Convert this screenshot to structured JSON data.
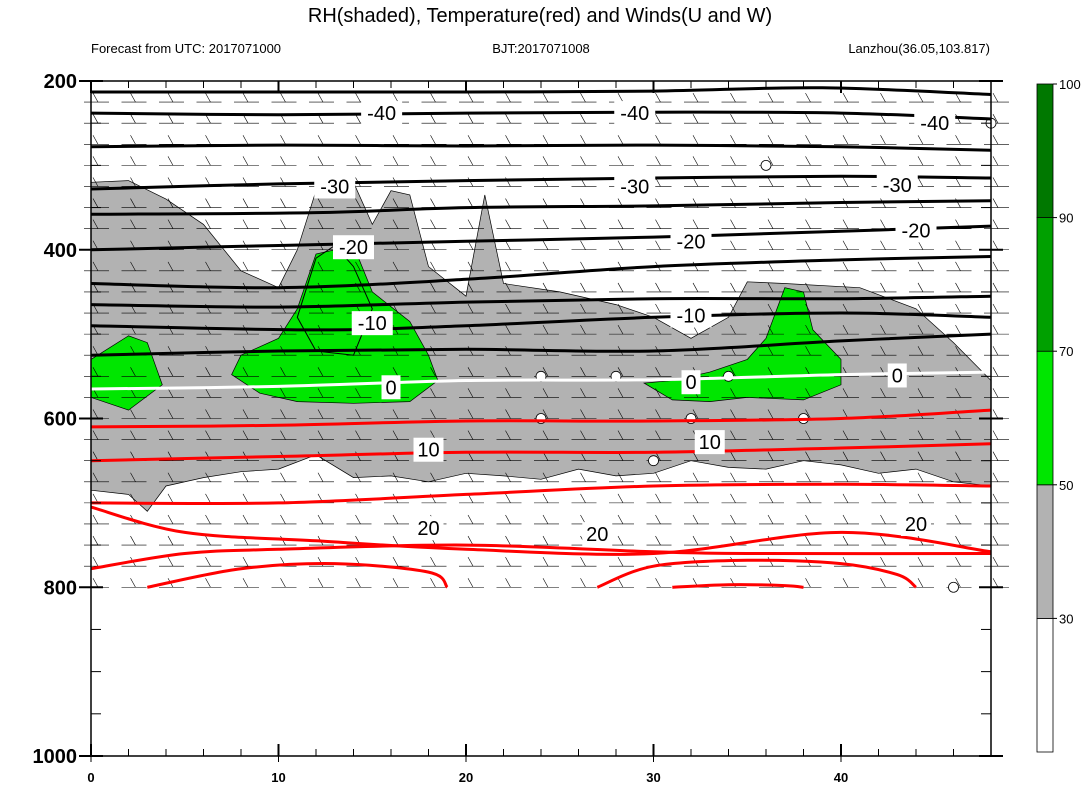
{
  "figure": {
    "title": "RH(shaded), Temperature(red) and Winds(U and W)",
    "left_subtitle": "Forecast from UTC: 2017071000",
    "center_subtitle": "BJT:2017071008",
    "right_subtitle": "Lanzhou(36.05,103.817)"
  },
  "chart_data": {
    "type": "contour",
    "x_axis": {
      "ticks": [
        0,
        10,
        20,
        30,
        40
      ],
      "range": [
        0,
        48
      ],
      "label": ""
    },
    "y_axis": {
      "ticks": [
        200,
        400,
        600,
        800,
        1000
      ],
      "range": [
        200,
        1000
      ],
      "label": "",
      "inverted": true
    },
    "grid": false,
    "colorbar": {
      "levels": [
        "30",
        "50",
        "70",
        "90",
        "100"
      ],
      "colors": [
        "#ffffff",
        "#b2b2b2",
        "#00e600",
        "#00a000",
        "#007800"
      ],
      "placement": "right"
    },
    "rh_shading": {
      "gray_region": [
        [
          0,
          320
        ],
        [
          2,
          318
        ],
        [
          4,
          340
        ],
        [
          6,
          370
        ],
        [
          8,
          425
        ],
        [
          10,
          445
        ],
        [
          11,
          400
        ],
        [
          12,
          330
        ],
        [
          14,
          320
        ],
        [
          15,
          370
        ],
        [
          16,
          330
        ],
        [
          17,
          335
        ],
        [
          18,
          420
        ],
        [
          20,
          455
        ],
        [
          21,
          335
        ],
        [
          22,
          440
        ],
        [
          25,
          450
        ],
        [
          28,
          465
        ],
        [
          30,
          480
        ],
        [
          32,
          505
        ],
        [
          34,
          480
        ],
        [
          35,
          438
        ],
        [
          37,
          440
        ],
        [
          41,
          445
        ],
        [
          44,
          470
        ],
        [
          46,
          510
        ],
        [
          48,
          555
        ],
        [
          48,
          680
        ],
        [
          46,
          675
        ],
        [
          44,
          660
        ],
        [
          42,
          665
        ],
        [
          40,
          655
        ],
        [
          38,
          650
        ],
        [
          36,
          660
        ],
        [
          34,
          658
        ],
        [
          32,
          650
        ],
        [
          30,
          665
        ],
        [
          28,
          668
        ],
        [
          26,
          660
        ],
        [
          24,
          672
        ],
        [
          22,
          668
        ],
        [
          20,
          665
        ],
        [
          18,
          675
        ],
        [
          16,
          668
        ],
        [
          14,
          670
        ],
        [
          12,
          643
        ],
        [
          10,
          660
        ],
        [
          8,
          663
        ],
        [
          6,
          670
        ],
        [
          4,
          680
        ],
        [
          3,
          710
        ],
        [
          2,
          690
        ],
        [
          0,
          685
        ]
      ],
      "green_regions": [
        [
          [
            0,
            530
          ],
          [
            2,
            502
          ],
          [
            3,
            510
          ],
          [
            3.8,
            560
          ],
          [
            2,
            590
          ],
          [
            0,
            575
          ]
        ],
        [
          [
            8,
            525
          ],
          [
            10,
            505
          ],
          [
            11,
            470
          ],
          [
            12,
            405
          ],
          [
            14,
            395
          ],
          [
            15,
            450
          ],
          [
            17,
            485
          ],
          [
            18,
            525
          ],
          [
            18.5,
            555
          ],
          [
            17,
            580
          ],
          [
            14,
            582
          ],
          [
            11,
            580
          ],
          [
            9,
            570
          ],
          [
            7.5,
            548
          ]
        ],
        [
          [
            29.5,
            558
          ],
          [
            31,
            555
          ],
          [
            33,
            545
          ],
          [
            35,
            530
          ],
          [
            36,
            505
          ],
          [
            37,
            445
          ],
          [
            38,
            450
          ],
          [
            38.5,
            495
          ],
          [
            40,
            530
          ],
          [
            40,
            560
          ],
          [
            38,
            578
          ],
          [
            35,
            575
          ],
          [
            33,
            580
          ],
          [
            31,
            578
          ]
        ]
      ],
      "dark_region": [
        [
          11,
          480
        ],
        [
          12,
          410
        ],
        [
          13,
          395
        ],
        [
          14,
          420
        ],
        [
          15,
          470
        ],
        [
          14,
          525
        ],
        [
          12,
          520
        ]
      ]
    },
    "temperature_contours": [
      {
        "value": -40,
        "color": "#000000",
        "points": [
          [
            0,
            213
          ],
          [
            10,
            213
          ],
          [
            20,
            213
          ],
          [
            30,
            212
          ],
          [
            39,
            208
          ],
          [
            48,
            216
          ]
        ]
      },
      {
        "value": -40,
        "color": "#000000",
        "points": [
          [
            0,
            238
          ],
          [
            10,
            240
          ],
          [
            20,
            238
          ],
          [
            30,
            237
          ],
          [
            40,
            238
          ],
          [
            48,
            245
          ]
        ]
      },
      {
        "value": -40,
        "color": "#000000",
        "points": [
          [
            0,
            278
          ],
          [
            10,
            276
          ],
          [
            20,
            277
          ],
          [
            30,
            276
          ],
          [
            40,
            278
          ],
          [
            48,
            282
          ]
        ]
      },
      {
        "value": -30,
        "color": "#000000",
        "points": [
          [
            0,
            328
          ],
          [
            10,
            322
          ],
          [
            20,
            318
          ],
          [
            30,
            315
          ],
          [
            40,
            313
          ],
          [
            48,
            315
          ]
        ]
      },
      {
        "value": -30,
        "color": "#000000",
        "points": [
          [
            0,
            358
          ],
          [
            12,
            356
          ],
          [
            20,
            350
          ],
          [
            30,
            348
          ],
          [
            40,
            344
          ],
          [
            48,
            342
          ]
        ]
      },
      {
        "value": -20,
        "color": "#000000",
        "points": [
          [
            0,
            400
          ],
          [
            10,
            395
          ],
          [
            20,
            390
          ],
          [
            30,
            385
          ],
          [
            40,
            378
          ],
          [
            48,
            372
          ]
        ]
      },
      {
        "value": -20,
        "color": "#000000",
        "points": [
          [
            0,
            440
          ],
          [
            10,
            445
          ],
          [
            20,
            435
          ],
          [
            30,
            420
          ],
          [
            40,
            412
          ],
          [
            48,
            408
          ]
        ]
      },
      {
        "value": -10,
        "color": "#000000",
        "points": [
          [
            0,
            465
          ],
          [
            10,
            468
          ],
          [
            20,
            462
          ],
          [
            30,
            458
          ],
          [
            40,
            458
          ],
          [
            48,
            455
          ]
        ]
      },
      {
        "value": -10,
        "color": "#000000",
        "points": [
          [
            0,
            490
          ],
          [
            12,
            495
          ],
          [
            20,
            490
          ],
          [
            30,
            480
          ],
          [
            40,
            475
          ],
          [
            48,
            480
          ]
        ]
      },
      {
        "value": -10,
        "color": "#000000",
        "points": [
          [
            0,
            525
          ],
          [
            10,
            520
          ],
          [
            20,
            518
          ],
          [
            30,
            520
          ],
          [
            40,
            508
          ],
          [
            48,
            500
          ]
        ]
      },
      {
        "value": 0,
        "color": "#ffffff",
        "points": [
          [
            0,
            565
          ],
          [
            10,
            562
          ],
          [
            20,
            555
          ],
          [
            30,
            554
          ],
          [
            40,
            548
          ],
          [
            48,
            545
          ]
        ]
      },
      {
        "value": 10,
        "color": "#ff0000",
        "points": [
          [
            0,
            610
          ],
          [
            10,
            608
          ],
          [
            20,
            603
          ],
          [
            30,
            603
          ],
          [
            40,
            600
          ],
          [
            48,
            590
          ]
        ]
      },
      {
        "value": 10,
        "color": "#ff0000",
        "points": [
          [
            0,
            650
          ],
          [
            10,
            645
          ],
          [
            20,
            640
          ],
          [
            30,
            640
          ],
          [
            40,
            635
          ],
          [
            48,
            630
          ]
        ]
      },
      {
        "value": 10,
        "color": "#ff0000",
        "points": [
          [
            0,
            700
          ],
          [
            10,
            700
          ],
          [
            20,
            690
          ],
          [
            30,
            680
          ],
          [
            40,
            678
          ],
          [
            48,
            680
          ]
        ]
      },
      {
        "value": 20,
        "color": "#ff0000",
        "points": [
          [
            0,
            705
          ],
          [
            5,
            735
          ],
          [
            12,
            745
          ],
          [
            20,
            755
          ],
          [
            30,
            760
          ],
          [
            40,
            735
          ],
          [
            48,
            758
          ]
        ]
      },
      {
        "value": 20,
        "color": "#ff0000",
        "points": [
          [
            0,
            778
          ],
          [
            5,
            760
          ],
          [
            10,
            755
          ],
          [
            20,
            750
          ],
          [
            30,
            758
          ],
          [
            35,
            760
          ],
          [
            48,
            760
          ]
        ]
      },
      {
        "value": 20,
        "color": "#ff0000",
        "points": [
          [
            3,
            800
          ],
          [
            8,
            778
          ],
          [
            13,
            772
          ],
          [
            18,
            782
          ],
          [
            19,
            800
          ]
        ]
      },
      {
        "value": 20,
        "color": "#ff0000",
        "points": [
          [
            27,
            800
          ],
          [
            30,
            775
          ],
          [
            35,
            768
          ],
          [
            40,
            772
          ],
          [
            43,
            785
          ],
          [
            44,
            800
          ]
        ]
      },
      {
        "value": 20,
        "color": "#ff0000",
        "points": [
          [
            31,
            800
          ],
          [
            34,
            797
          ],
          [
            37,
            798
          ],
          [
            38,
            800
          ]
        ]
      }
    ],
    "contour_labels": [
      {
        "text": "-40",
        "x": 15.5,
        "y": 238
      },
      {
        "text": "-40",
        "x": 29,
        "y": 238
      },
      {
        "text": "-40",
        "x": 45,
        "y": 250
      },
      {
        "text": "-30",
        "x": 13,
        "y": 325
      },
      {
        "text": "-30",
        "x": 29,
        "y": 325
      },
      {
        "text": "-30",
        "x": 43,
        "y": 323
      },
      {
        "text": "-20",
        "x": 14,
        "y": 397
      },
      {
        "text": "-20",
        "x": 32,
        "y": 390
      },
      {
        "text": "-20",
        "x": 44,
        "y": 377
      },
      {
        "text": "-10",
        "x": 15,
        "y": 487
      },
      {
        "text": "-10",
        "x": 32,
        "y": 478
      },
      {
        "text": "0",
        "x": 16,
        "y": 563
      },
      {
        "text": "0",
        "x": 32,
        "y": 557
      },
      {
        "text": "0",
        "x": 43,
        "y": 549
      },
      {
        "text": "10",
        "x": 18,
        "y": 637
      },
      {
        "text": "10",
        "x": 33,
        "y": 628
      },
      {
        "text": "20",
        "x": 18,
        "y": 730
      },
      {
        "text": "20",
        "x": 27,
        "y": 737
      },
      {
        "text": "20",
        "x": 44,
        "y": 725
      }
    ],
    "wind_levels": [
      225,
      250,
      275,
      300,
      325,
      350,
      375,
      400,
      425,
      450,
      475,
      500,
      525,
      550,
      575,
      600,
      625,
      650,
      675,
      700,
      725,
      750,
      775,
      800
    ],
    "wind_calm_points": [
      [
        24,
        550
      ],
      [
        28,
        550
      ],
      [
        34,
        550
      ],
      [
        24,
        600
      ],
      [
        32,
        600
      ],
      [
        38,
        600
      ],
      [
        30,
        650
      ],
      [
        36,
        300
      ],
      [
        48,
        250
      ],
      [
        46,
        800
      ]
    ]
  }
}
